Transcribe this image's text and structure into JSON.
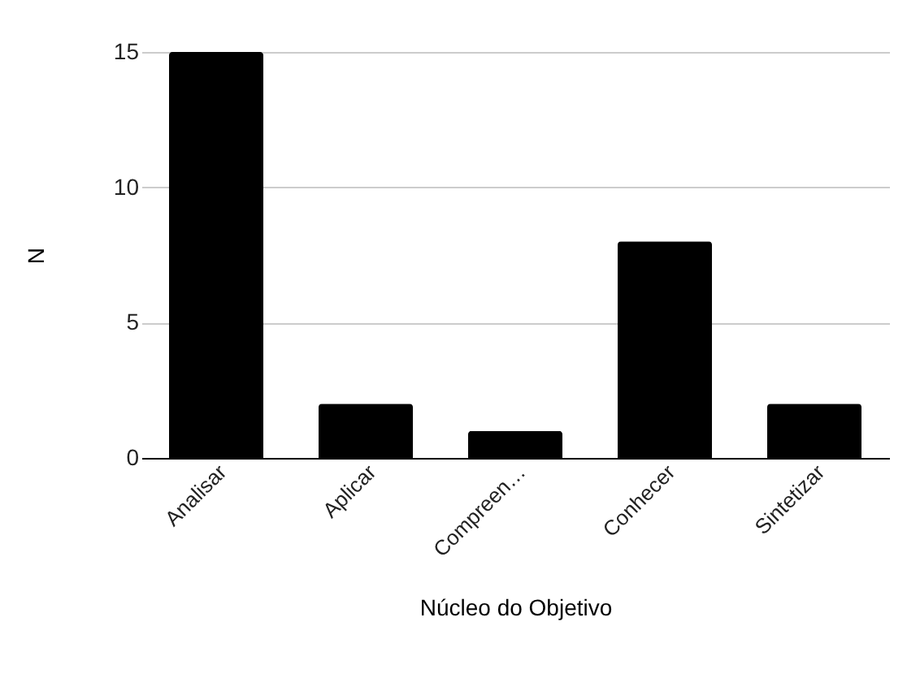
{
  "chart_data": {
    "type": "bar",
    "xlabel": "Núcleo do Objetivo",
    "ylabel": "N",
    "categories": [
      "Analisar",
      "Aplicar",
      "Compreen…",
      "Conhecer",
      "Sintetizar"
    ],
    "values": [
      15,
      2,
      1,
      8,
      2
    ],
    "color": "#000000",
    "ylim": [
      0,
      15
    ],
    "yticks": [
      0,
      5,
      10,
      15
    ],
    "grid": "y"
  }
}
